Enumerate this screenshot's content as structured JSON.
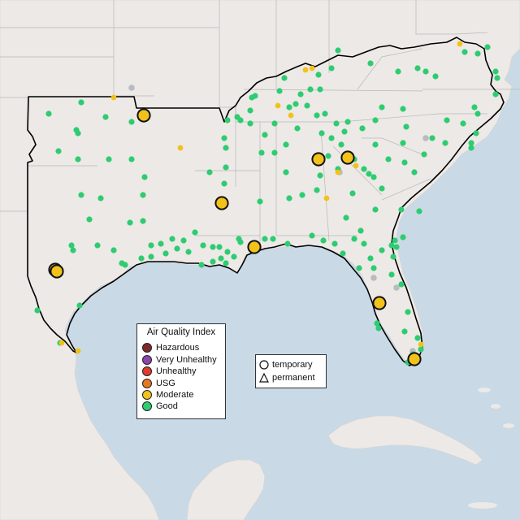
{
  "legend": {
    "title": "Air Quality Index",
    "items": [
      {
        "label": "Hazardous",
        "color": "#7e2a2a"
      },
      {
        "label": "Very Unhealthy",
        "color": "#8e44ad"
      },
      {
        "label": "Unhealthy",
        "color": "#e03b2c"
      },
      {
        "label": "USG",
        "color": "#e8771e"
      },
      {
        "label": "Moderate",
        "color": "#f2c21a"
      },
      {
        "label": "Good",
        "color": "#2ecc71"
      }
    ]
  },
  "monitor_type_legend": {
    "items": [
      {
        "label": "temporary",
        "icon": "circle-outline-icon"
      },
      {
        "label": "permanent",
        "icon": "triangle-outline-icon"
      }
    ]
  },
  "colors": {
    "water": "#c9d9e6",
    "land": "#ece9e6",
    "region_outline": "#000000",
    "state_border": "#b9b9b9",
    "no_data": "#b8bcc0"
  }
}
